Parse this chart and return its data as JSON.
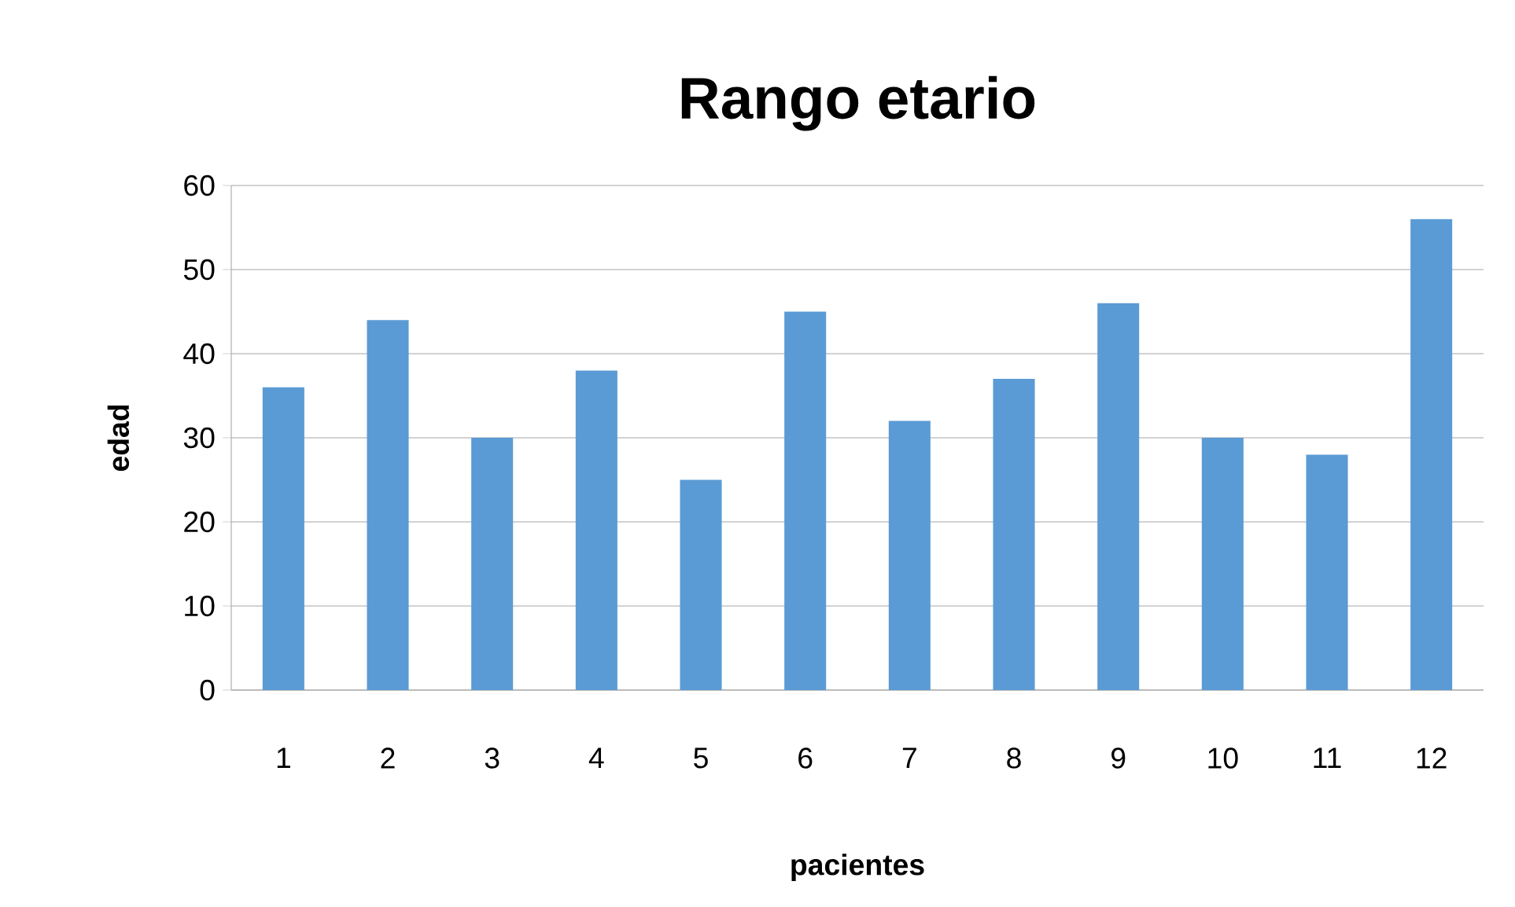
{
  "chart_data": {
    "type": "bar",
    "title": "Rango etario",
    "xlabel": "pacientes",
    "ylabel": "edad",
    "categories": [
      "1",
      "2",
      "3",
      "4",
      "5",
      "6",
      "7",
      "8",
      "9",
      "10",
      "11",
      "12"
    ],
    "values": [
      36,
      44,
      30,
      38,
      25,
      45,
      32,
      37,
      46,
      30,
      28,
      56
    ],
    "color": "#5b9bd5",
    "ylim": [
      0,
      60
    ],
    "yticks": [
      0,
      10,
      20,
      30,
      40,
      50,
      60
    ],
    "grid": "y"
  }
}
